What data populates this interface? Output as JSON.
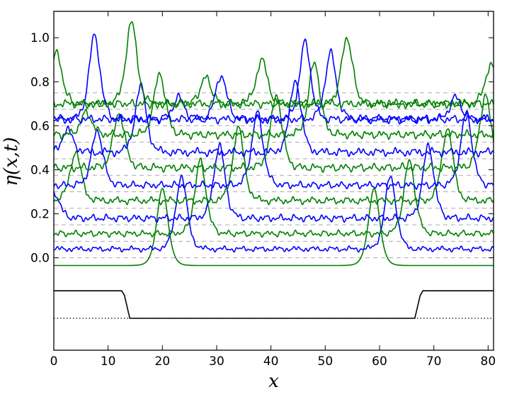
{
  "chart_data": {
    "type": "line",
    "title": "",
    "xlabel": "x",
    "ylabel": "η(x,t)",
    "xlim": [
      0,
      81
    ],
    "ylim": [
      -0.42,
      1.12
    ],
    "grid": false,
    "x_ticks": [
      0,
      10,
      20,
      30,
      40,
      50,
      60,
      70,
      80
    ],
    "x_tick_labels": [
      "0",
      "10",
      "20",
      "30",
      "40",
      "50",
      "60",
      "70",
      "80"
    ],
    "y_ticks": [
      0.0,
      0.2,
      0.4,
      0.6,
      0.8,
      1.0
    ],
    "y_tick_labels": [
      "0.0",
      "0.2",
      "0.4",
      "0.6",
      "0.8",
      "1.0"
    ],
    "colors": {
      "blue": "#0000ff",
      "green": "#008000",
      "black": "#000000",
      "reference": "#aaaaaa"
    },
    "wave_series": [
      {
        "color": "green",
        "baseline": -0.035,
        "noise": 0.0,
        "peaks": [
          {
            "x": 20.0,
            "h": 0.35
          },
          {
            "x": 59.0,
            "h": 0.35
          }
        ]
      },
      {
        "color": "blue",
        "baseline": 0.04,
        "noise": 0.006,
        "peaks": [
          {
            "x": 23.5,
            "h": 0.33
          },
          {
            "x": 62.0,
            "h": 0.33
          }
        ]
      },
      {
        "color": "green",
        "baseline": 0.11,
        "noise": 0.007,
        "peaks": [
          {
            "x": 27.0,
            "h": 0.33
          },
          {
            "x": 65.5,
            "h": 0.33
          }
        ]
      },
      {
        "color": "blue",
        "baseline": 0.18,
        "noise": 0.008,
        "peaks": [
          {
            "x": 30.5,
            "h": 0.33
          },
          {
            "x": 69.0,
            "h": 0.33
          },
          {
            "x": 0.0,
            "h": 0.12
          }
        ]
      },
      {
        "color": "green",
        "baseline": 0.26,
        "noise": 0.008,
        "peaks": [
          {
            "x": 34.0,
            "h": 0.33
          },
          {
            "x": 72.5,
            "h": 0.33
          },
          {
            "x": 4.0,
            "h": 0.22
          }
        ]
      },
      {
        "color": "blue",
        "baseline": 0.33,
        "noise": 0.008,
        "peaks": [
          {
            "x": 37.5,
            "h": 0.33
          },
          {
            "x": 76.0,
            "h": 0.33
          },
          {
            "x": 8.0,
            "h": 0.25
          }
        ]
      },
      {
        "color": "green",
        "baseline": 0.41,
        "noise": 0.009,
        "peaks": [
          {
            "x": 41.0,
            "h": 0.33
          },
          {
            "x": 79.5,
            "h": 0.33
          },
          {
            "x": 12.0,
            "h": 0.25
          }
        ]
      },
      {
        "color": "blue",
        "baseline": 0.48,
        "noise": 0.009,
        "peaks": [
          {
            "x": 44.5,
            "h": 0.33
          },
          {
            "x": 2.5,
            "h": 0.1
          },
          {
            "x": 16.0,
            "h": 0.3
          }
        ]
      },
      {
        "color": "green",
        "baseline": 0.56,
        "noise": 0.009,
        "peaks": [
          {
            "x": 48.0,
            "h": 0.33
          },
          {
            "x": 6.0,
            "h": 0.1
          },
          {
            "x": 19.5,
            "h": 0.28
          }
        ]
      },
      {
        "color": "blue",
        "baseline": 0.63,
        "noise": 0.009,
        "peaks": [
          {
            "x": 51.0,
            "h": 0.3
          },
          {
            "x": 23.0,
            "h": 0.1
          }
        ]
      },
      {
        "color": "green",
        "baseline": 0.7,
        "noise": 0.009,
        "peaks": [
          {
            "x": 54.0,
            "h": 0.3
          },
          {
            "x": 0.5,
            "h": 0.23
          },
          {
            "x": 28.0,
            "h": 0.12
          }
        ]
      },
      {
        "color": "blue",
        "baseline": 0.63,
        "noise": 0.009,
        "peaks": [
          {
            "x": 7.5,
            "h": 0.38
          },
          {
            "x": 30.8,
            "h": 0.2
          },
          {
            "x": 46.3,
            "h": 0.35
          },
          {
            "x": 74.0,
            "h": 0.1
          }
        ]
      },
      {
        "color": "green",
        "baseline": 0.7,
        "noise": 0.009,
        "peaks": [
          {
            "x": 14.3,
            "h": 0.37
          },
          {
            "x": 38.3,
            "h": 0.2
          },
          {
            "x": 80.5,
            "h": 0.18
          }
        ]
      }
    ],
    "reference_levels": [
      0.0,
      0.075,
      0.15,
      0.225,
      0.3,
      0.375,
      0.45,
      0.525,
      0.6,
      0.675,
      0.75
    ],
    "bathymetry": {
      "color": "black",
      "shallow_level": -0.15,
      "deep_level": -0.275,
      "x": [
        0,
        12.5,
        13.0,
        14.0,
        66.5,
        67.5,
        68.0,
        81
      ],
      "y": [
        -0.15,
        -0.15,
        -0.17,
        -0.275,
        -0.275,
        -0.17,
        -0.15,
        -0.15
      ],
      "dotted_level": -0.275
    }
  }
}
